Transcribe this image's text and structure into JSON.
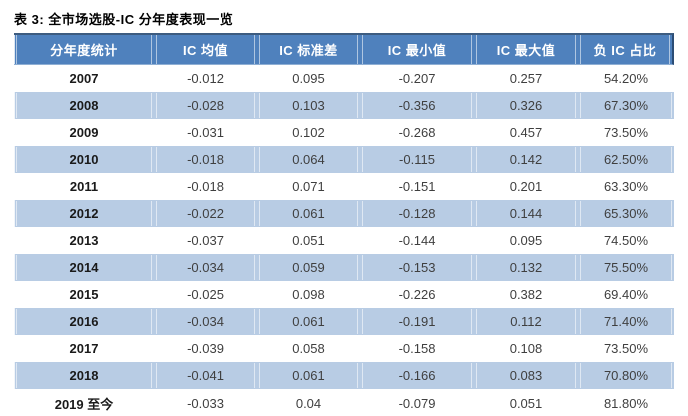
{
  "title": "表 3: 全市场选股-IC 分年度表现一览",
  "colors": {
    "header_bg": "#4F81BD",
    "header_text": "#FFFFFF",
    "header_top_border": "#3D5C80",
    "stripe": "#B8CCE4"
  },
  "table": {
    "headers": [
      "分年度统计",
      "IC 均值",
      "IC 标准差",
      "IC 最小值",
      "IC 最大值",
      "负 IC 占比"
    ],
    "rows": [
      [
        "2007",
        "-0.012",
        "0.095",
        "-0.207",
        "0.257",
        "54.20%"
      ],
      [
        "2008",
        "-0.028",
        "0.103",
        "-0.356",
        "0.326",
        "67.30%"
      ],
      [
        "2009",
        "-0.031",
        "0.102",
        "-0.268",
        "0.457",
        "73.50%"
      ],
      [
        "2010",
        "-0.018",
        "0.064",
        "-0.115",
        "0.142",
        "62.50%"
      ],
      [
        "2011",
        "-0.018",
        "0.071",
        "-0.151",
        "0.201",
        "63.30%"
      ],
      [
        "2012",
        "-0.022",
        "0.061",
        "-0.128",
        "0.144",
        "65.30%"
      ],
      [
        "2013",
        "-0.037",
        "0.051",
        "-0.144",
        "0.095",
        "74.50%"
      ],
      [
        "2014",
        "-0.034",
        "0.059",
        "-0.153",
        "0.132",
        "75.50%"
      ],
      [
        "2015",
        "-0.025",
        "0.098",
        "-0.226",
        "0.382",
        "69.40%"
      ],
      [
        "2016",
        "-0.034",
        "0.061",
        "-0.191",
        "0.112",
        "71.40%"
      ],
      [
        "2017",
        "-0.039",
        "0.058",
        "-0.158",
        "0.108",
        "73.50%"
      ],
      [
        "2018",
        "-0.041",
        "0.061",
        "-0.166",
        "0.083",
        "70.80%"
      ],
      [
        "2019 至今",
        "-0.033",
        "0.04",
        "-0.079",
        "0.051",
        "81.80%"
      ]
    ]
  },
  "chart_data": {
    "type": "table",
    "title": "表 3: 全市场选股-IC 分年度表现一览",
    "columns": [
      "分年度统计",
      "IC 均值",
      "IC 标准差",
      "IC 最小值",
      "IC 最大值",
      "负 IC 占比"
    ],
    "rows": [
      [
        "2007",
        -0.012,
        0.095,
        -0.207,
        0.257,
        "54.20%"
      ],
      [
        "2008",
        -0.028,
        0.103,
        -0.356,
        0.326,
        "67.30%"
      ],
      [
        "2009",
        -0.031,
        0.102,
        -0.268,
        0.457,
        "73.50%"
      ],
      [
        "2010",
        -0.018,
        0.064,
        -0.115,
        0.142,
        "62.50%"
      ],
      [
        "2011",
        -0.018,
        0.071,
        -0.151,
        0.201,
        "63.30%"
      ],
      [
        "2012",
        -0.022,
        0.061,
        -0.128,
        0.144,
        "65.30%"
      ],
      [
        "2013",
        -0.037,
        0.051,
        -0.144,
        0.095,
        "74.50%"
      ],
      [
        "2014",
        -0.034,
        0.059,
        -0.153,
        0.132,
        "75.50%"
      ],
      [
        "2015",
        -0.025,
        0.098,
        -0.226,
        0.382,
        "69.40%"
      ],
      [
        "2016",
        -0.034,
        0.061,
        -0.191,
        0.112,
        "71.40%"
      ],
      [
        "2017",
        -0.039,
        0.058,
        -0.158,
        0.108,
        "73.50%"
      ],
      [
        "2018",
        -0.041,
        0.061,
        -0.166,
        0.083,
        "70.80%"
      ],
      [
        "2019 至今",
        -0.033,
        0.04,
        -0.079,
        0.051,
        "81.80%"
      ]
    ]
  }
}
